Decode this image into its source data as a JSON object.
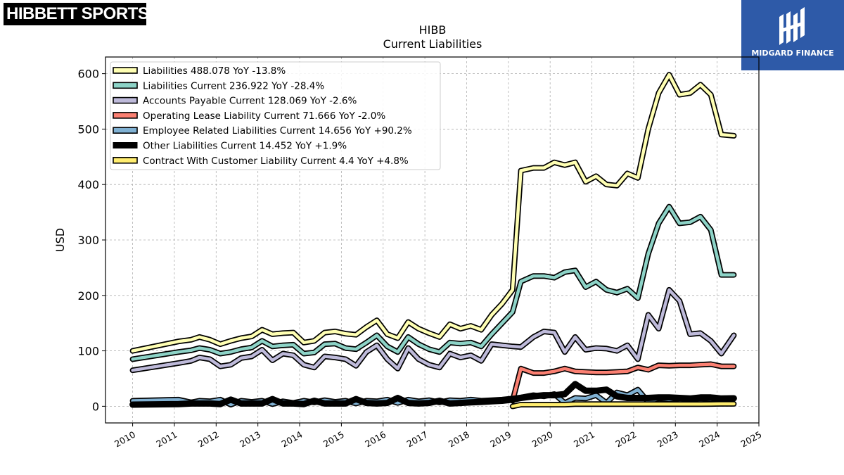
{
  "branding": {
    "company_logo_text": "HIBBETT SPORTS",
    "company_logo_mark": "®",
    "sponsor_name": "MIDGARD FINANCE"
  },
  "chart_data": {
    "type": "line",
    "title": "HIBB",
    "subtitle": "Current  Liabilities",
    "ylabel": "USD",
    "xlabel": "",
    "xlim": [
      2009.35,
      2025.0
    ],
    "ylim": [
      -30,
      630
    ],
    "yticks": [
      0,
      100,
      200,
      300,
      400,
      500,
      600
    ],
    "xticks": [
      "2010",
      "2011",
      "2012",
      "2013",
      "2014",
      "2015",
      "2016",
      "2017",
      "2018",
      "2019",
      "2020",
      "2021",
      "2022",
      "2023",
      "2024",
      "2025"
    ],
    "grid": true,
    "legend_position": "top-left",
    "series": [
      {
        "name": "Liabilities",
        "legend": "Liabilities  488.078 YoY -13.8%",
        "color": "#ffffb3",
        "x": [
          2010.0,
          2011.1,
          2011.4,
          2011.6,
          2011.85,
          2012.1,
          2012.35,
          2012.6,
          2012.85,
          2013.1,
          2013.35,
          2013.6,
          2013.85,
          2014.1,
          2014.35,
          2014.6,
          2014.85,
          2015.1,
          2015.35,
          2015.6,
          2015.85,
          2016.1,
          2016.35,
          2016.6,
          2016.85,
          2017.1,
          2017.35,
          2017.6,
          2017.85,
          2018.1,
          2018.35,
          2018.6,
          2018.85,
          2019.1,
          2019.3,
          2019.6,
          2019.85,
          2020.1,
          2020.35,
          2020.6,
          2020.85,
          2021.1,
          2021.35,
          2021.6,
          2021.85,
          2022.1,
          2022.35,
          2022.6,
          2022.85,
          2023.1,
          2023.35,
          2023.6,
          2023.85,
          2024.1,
          2024.4
        ],
        "y": [
          100,
          117,
          120,
          125,
          120,
          112,
          118,
          123,
          126,
          138,
          130,
          132,
          133,
          115,
          118,
          133,
          135,
          131,
          129,
          143,
          155,
          130,
          123,
          152,
          140,
          132,
          125,
          148,
          140,
          145,
          138,
          165,
          185,
          210,
          425,
          430,
          430,
          440,
          435,
          440,
          405,
          415,
          400,
          398,
          420,
          412,
          500,
          565,
          598,
          562,
          565,
          580,
          562,
          490,
          488
        ]
      },
      {
        "name": "Liabilities Current",
        "legend": "Liabilities Current  236.922 YoY -28.4%",
        "color": "#8dd3c7",
        "x": [
          2010.0,
          2011.1,
          2011.4,
          2011.6,
          2011.85,
          2012.1,
          2012.35,
          2012.6,
          2012.85,
          2013.1,
          2013.35,
          2013.6,
          2013.85,
          2014.1,
          2014.35,
          2014.6,
          2014.85,
          2015.1,
          2015.35,
          2015.6,
          2015.85,
          2016.1,
          2016.35,
          2016.6,
          2016.85,
          2017.1,
          2017.35,
          2017.6,
          2017.85,
          2018.1,
          2018.35,
          2018.6,
          2018.85,
          2019.1,
          2019.3,
          2019.6,
          2019.85,
          2020.1,
          2020.35,
          2020.6,
          2020.85,
          2021.1,
          2021.35,
          2021.6,
          2021.85,
          2022.1,
          2022.35,
          2022.6,
          2022.85,
          2023.1,
          2023.35,
          2023.6,
          2023.85,
          2024.1,
          2024.4
        ],
        "y": [
          85,
          98,
          101,
          105,
          102,
          95,
          98,
          103,
          106,
          118,
          108,
          110,
          111,
          95,
          97,
          112,
          113,
          105,
          103,
          115,
          128,
          108,
          98,
          125,
          112,
          103,
          98,
          115,
          113,
          115,
          108,
          130,
          150,
          170,
          225,
          235,
          235,
          232,
          242,
          245,
          215,
          225,
          210,
          205,
          212,
          195,
          275,
          330,
          360,
          330,
          332,
          342,
          318,
          237,
          237
        ]
      },
      {
        "name": "Accounts Payable Current",
        "legend": "Accounts Payable Current  128.069 YoY -2.6%",
        "color": "#bebada",
        "x": [
          2010.0,
          2011.1,
          2011.4,
          2011.6,
          2011.85,
          2012.1,
          2012.35,
          2012.6,
          2012.85,
          2013.1,
          2013.35,
          2013.6,
          2013.85,
          2014.1,
          2014.35,
          2014.6,
          2014.85,
          2015.1,
          2015.35,
          2015.6,
          2015.85,
          2016.1,
          2016.35,
          2016.6,
          2016.85,
          2017.1,
          2017.35,
          2017.6,
          2017.85,
          2018.1,
          2018.35,
          2018.6,
          2018.85,
          2019.1,
          2019.3,
          2019.6,
          2019.85,
          2020.1,
          2020.35,
          2020.6,
          2020.85,
          2021.1,
          2021.35,
          2021.6,
          2021.85,
          2022.1,
          2022.35,
          2022.6,
          2022.85,
          2023.1,
          2023.35,
          2023.6,
          2023.85,
          2024.1,
          2024.4
        ],
        "y": [
          65,
          78,
          82,
          88,
          85,
          72,
          75,
          87,
          90,
          102,
          83,
          95,
          92,
          75,
          70,
          90,
          88,
          85,
          73,
          98,
          110,
          85,
          68,
          105,
          85,
          75,
          70,
          95,
          88,
          92,
          82,
          112,
          110,
          108,
          107,
          125,
          135,
          133,
          98,
          125,
          102,
          105,
          104,
          100,
          110,
          85,
          165,
          140,
          210,
          190,
          130,
          132,
          118,
          95,
          128
        ]
      },
      {
        "name": "Operating Lease Liability Current",
        "legend": "Operating Lease Liability Current  71.666 YoY -2.0%",
        "color": "#fb8072",
        "x": [
          2019.1,
          2019.3,
          2019.6,
          2019.85,
          2020.1,
          2020.35,
          2020.6,
          2020.85,
          2021.1,
          2021.35,
          2021.6,
          2021.85,
          2022.1,
          2022.35,
          2022.6,
          2022.85,
          2023.1,
          2023.35,
          2023.6,
          2023.85,
          2024.1,
          2024.4
        ],
        "y": [
          10,
          68,
          60,
          60,
          63,
          68,
          63,
          62,
          61,
          61,
          62,
          63,
          70,
          66,
          74,
          73,
          74,
          74,
          75,
          76,
          72,
          72
        ]
      },
      {
        "name": "Employee Related Liabilities Current",
        "legend": "Employee Related Liabilities Current  14.656 YoY +90.2%",
        "color": "#80b1d3",
        "x": [
          2010.0,
          2011.1,
          2011.4,
          2011.6,
          2011.85,
          2012.1,
          2012.35,
          2012.6,
          2012.85,
          2013.1,
          2013.35,
          2013.6,
          2013.85,
          2014.1,
          2014.35,
          2014.6,
          2014.85,
          2015.1,
          2015.35,
          2015.6,
          2015.85,
          2016.1,
          2016.35,
          2016.6,
          2016.85,
          2017.1,
          2017.35,
          2017.6,
          2017.85,
          2018.1,
          2018.35,
          2018.6,
          2018.85,
          2019.1,
          2019.3,
          2019.6,
          2019.85,
          2020.1,
          2020.35,
          2020.6,
          2020.85,
          2021.1,
          2021.35,
          2021.6,
          2021.85,
          2022.1,
          2022.35,
          2022.6,
          2022.85,
          2023.1,
          2023.35,
          2023.6,
          2023.85,
          2024.1,
          2024.4
        ],
        "y": [
          10,
          12,
          7,
          10,
          9,
          12,
          3,
          10,
          8,
          10,
          4,
          9,
          6,
          10,
          7,
          11,
          8,
          10,
          5,
          10,
          9,
          12,
          6,
          12,
          9,
          11,
          7,
          11,
          10,
          12,
          10,
          11,
          12,
          14,
          16,
          20,
          18,
          22,
          6,
          15,
          14,
          20,
          6,
          25,
          20,
          30,
          8,
          14,
          12,
          14,
          13,
          14,
          13,
          14,
          14.656
        ]
      },
      {
        "name": "Other Liabilities Current",
        "legend": "Other Liabilities Current  14.452 YoY +1.9%",
        "color": "#000000",
        "x": [
          2010.0,
          2011.1,
          2011.4,
          2011.6,
          2011.85,
          2012.1,
          2012.35,
          2012.6,
          2012.85,
          2013.1,
          2013.35,
          2013.6,
          2013.85,
          2014.1,
          2014.35,
          2014.6,
          2014.85,
          2015.1,
          2015.35,
          2015.6,
          2015.85,
          2016.1,
          2016.35,
          2016.6,
          2016.85,
          2017.1,
          2017.35,
          2017.6,
          2017.85,
          2018.1,
          2018.35,
          2018.6,
          2018.85,
          2019.1,
          2019.3,
          2019.6,
          2019.85,
          2020.1,
          2020.35,
          2020.6,
          2020.85,
          2021.1,
          2021.35,
          2021.6,
          2021.85,
          2022.1,
          2022.35,
          2022.6,
          2022.85,
          2023.1,
          2023.35,
          2023.6,
          2023.85,
          2024.1,
          2024.4
        ],
        "y": [
          3,
          4,
          5,
          5,
          5,
          4,
          12,
          5,
          5,
          5,
          13,
          5,
          5,
          4,
          10,
          5,
          5,
          5,
          13,
          6,
          5,
          6,
          15,
          6,
          5,
          6,
          10,
          5,
          6,
          7,
          8,
          9,
          10,
          12,
          15,
          18,
          20,
          20,
          22,
          40,
          28,
          28,
          30,
          18,
          15,
          15,
          15,
          16,
          16,
          15,
          14,
          16,
          16,
          14,
          14.452
        ]
      },
      {
        "name": "Contract With Customer Liability Current",
        "legend": "Contract With Customer Liability Current  4.4 YoY +4.8%",
        "color": "#ffed6f",
        "x": [
          2019.1,
          2019.3,
          2019.6,
          2019.85,
          2020.1,
          2020.35,
          2020.6,
          2020.85,
          2021.1,
          2021.35,
          2021.6,
          2021.85,
          2022.1,
          2022.35,
          2022.6,
          2022.85,
          2023.1,
          2023.35,
          2023.6,
          2023.85,
          2024.1,
          2024.4
        ],
        "y": [
          0,
          3,
          3,
          3,
          3,
          3,
          4,
          4,
          4,
          4,
          4,
          4,
          4,
          4,
          4,
          4,
          4,
          4,
          4,
          4.2,
          4.4,
          4.4
        ]
      }
    ]
  }
}
